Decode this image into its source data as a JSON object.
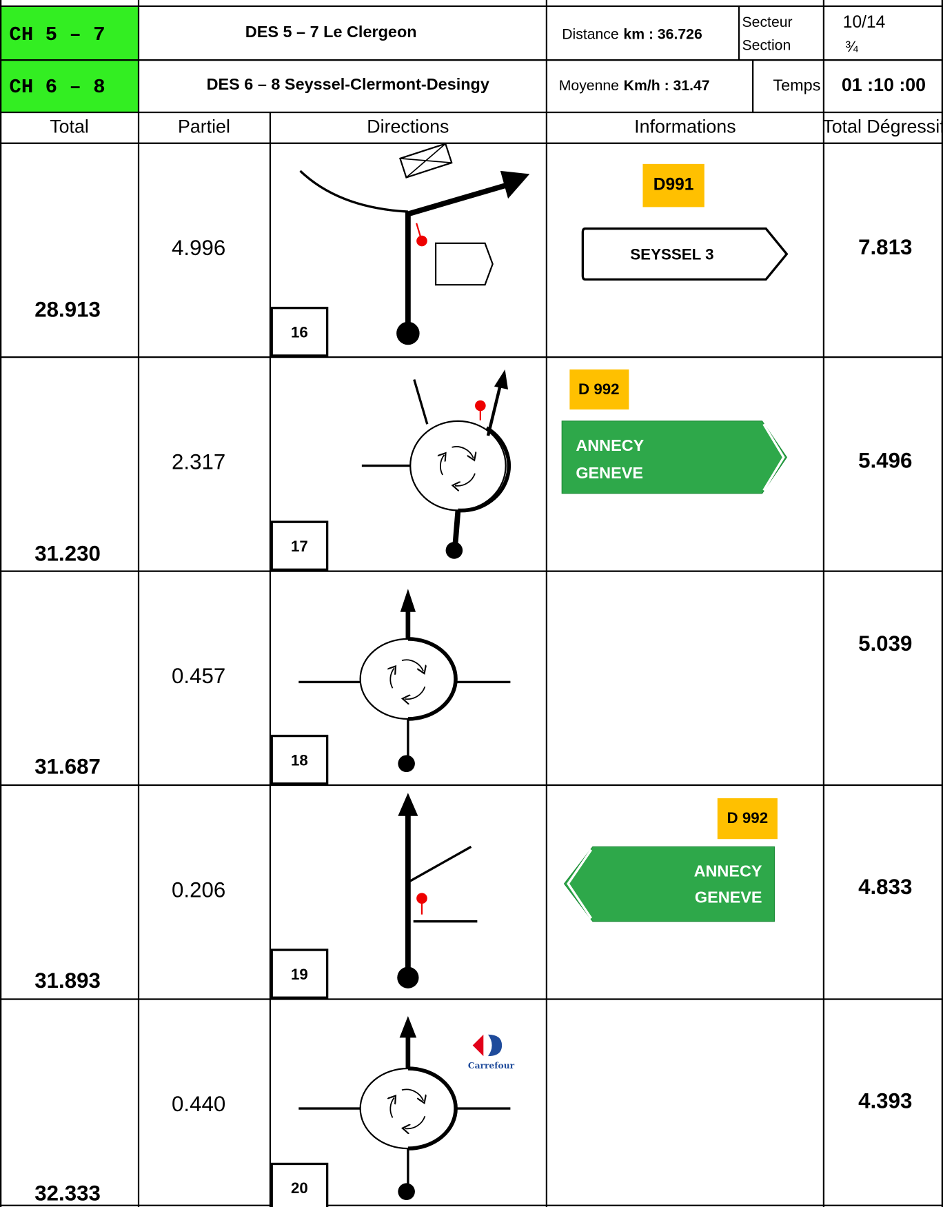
{
  "header": {
    "stage_a": "CH 5 – 7",
    "stage_b": "CH 6 – 8",
    "section_a": "DES 5 – 7 Le Clergeon",
    "section_b": "DES 6 – 8 Seyssel-Clermont-Desingy",
    "distance_label": "Distance",
    "distance_value": "km : 36.726",
    "average_label": "Moyenne",
    "average_value": "Km/h : 31.47",
    "sector_label": "Secteur",
    "section_label": "Section",
    "time_label": "Temps",
    "time_value": "01 :10 :00",
    "page": "10/14",
    "fraction": "¾"
  },
  "columns": [
    "Total",
    "Partiel",
    "Directions",
    "Informations",
    "Total Dégressif"
  ],
  "entries": [
    {
      "total": "28.913",
      "partial": "4.996",
      "step": "16",
      "remaining": "7.813",
      "road": "D991",
      "sign": [
        "SEYSSEL 3"
      ]
    },
    {
      "total": "31.230",
      "partial": "2.317",
      "step": "17",
      "remaining": "5.496",
      "road": "D 992",
      "sign": [
        "ANNECY",
        "GENEVE"
      ]
    },
    {
      "total": "31.687",
      "partial": "0.457",
      "step": "18",
      "remaining": "5.039"
    },
    {
      "total": "31.893",
      "partial": "0.206",
      "step": "19",
      "remaining": "4.833",
      "road": "D 992",
      "sign": [
        "ANNECY",
        "GENEVE"
      ]
    },
    {
      "total": "32.333",
      "partial": "0.440",
      "step": "20",
      "remaining": "4.393",
      "logo": "Carrefour"
    }
  ]
}
